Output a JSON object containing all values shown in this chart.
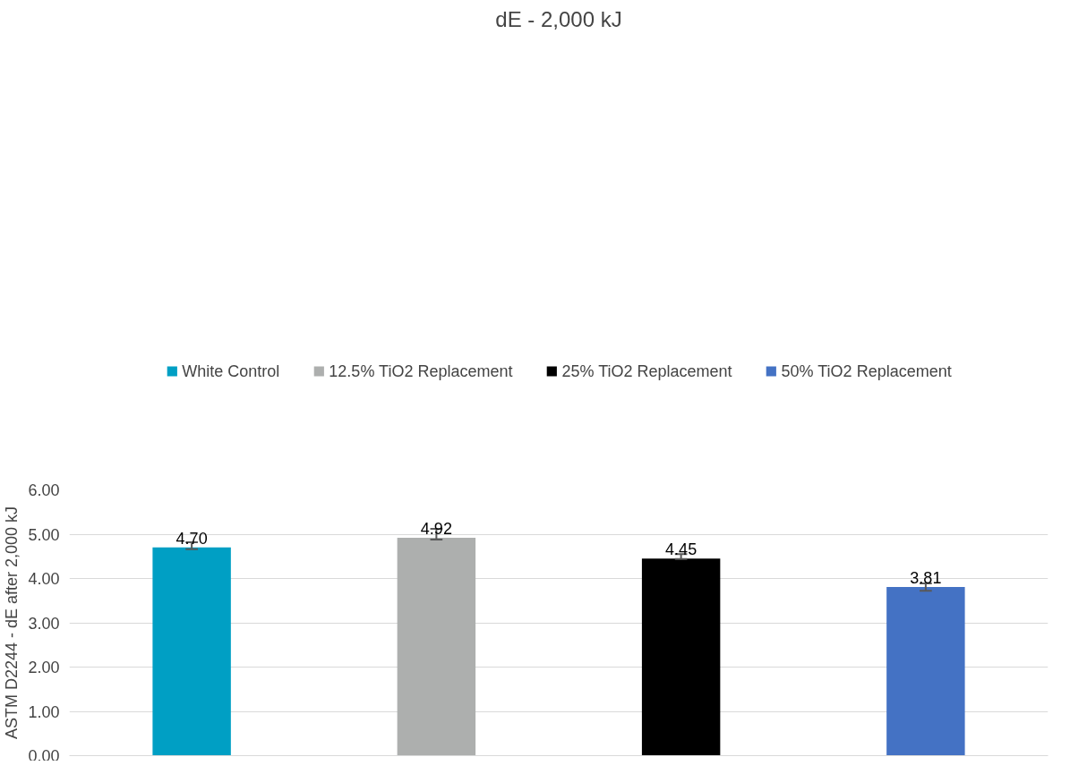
{
  "chart_data": {
    "type": "bar",
    "title": "dE - 2,000 kJ",
    "ylabel": "ASTM D2244 - dE after 2,000 kJ",
    "categories": [
      null,
      null,
      null,
      null
    ],
    "series": [
      {
        "name": "White Control",
        "color": "#009fc4",
        "values": [
          4.7,
          null,
          null,
          null
        ],
        "value_labels": [
          "4.70",
          null,
          null,
          null
        ],
        "errors": [
          [
            4.66,
            4.82
          ],
          null,
          null,
          null
        ]
      },
      {
        "name": "12.5% TiO2 Replacement",
        "color": "#adafae",
        "values": [
          null,
          4.92,
          null,
          null
        ],
        "value_labels": [
          null,
          "4.92",
          null,
          null
        ],
        "errors": [
          null,
          [
            4.88,
            5.12
          ],
          null,
          null
        ]
      },
      {
        "name": "25% TiO2 Replacement",
        "color": "#000000",
        "values": [
          null,
          null,
          4.45,
          null
        ],
        "value_labels": [
          null,
          null,
          "4.45",
          null
        ],
        "errors": [
          null,
          null,
          [
            4.44,
            4.55
          ],
          null
        ]
      },
      {
        "name": "50% TiO2 Replacement",
        "color": "#4472c4",
        "values": [
          null,
          null,
          null,
          3.81
        ],
        "value_labels": [
          null,
          null,
          null,
          "3.81"
        ],
        "errors": [
          null,
          null,
          null,
          [
            3.72,
            3.89
          ]
        ]
      }
    ],
    "ylim": [
      0,
      6
    ],
    "yticks": [
      {
        "value": 0,
        "label": "0.00"
      },
      {
        "value": 1,
        "label": "1.00"
      },
      {
        "value": 2,
        "label": "2.00"
      },
      {
        "value": 3,
        "label": "3.00"
      },
      {
        "value": 4,
        "label": "4.00"
      },
      {
        "value": 5,
        "label": "5.00"
      },
      {
        "value": 6,
        "label": "6.00"
      }
    ],
    "grid": "y",
    "legend": "top"
  }
}
